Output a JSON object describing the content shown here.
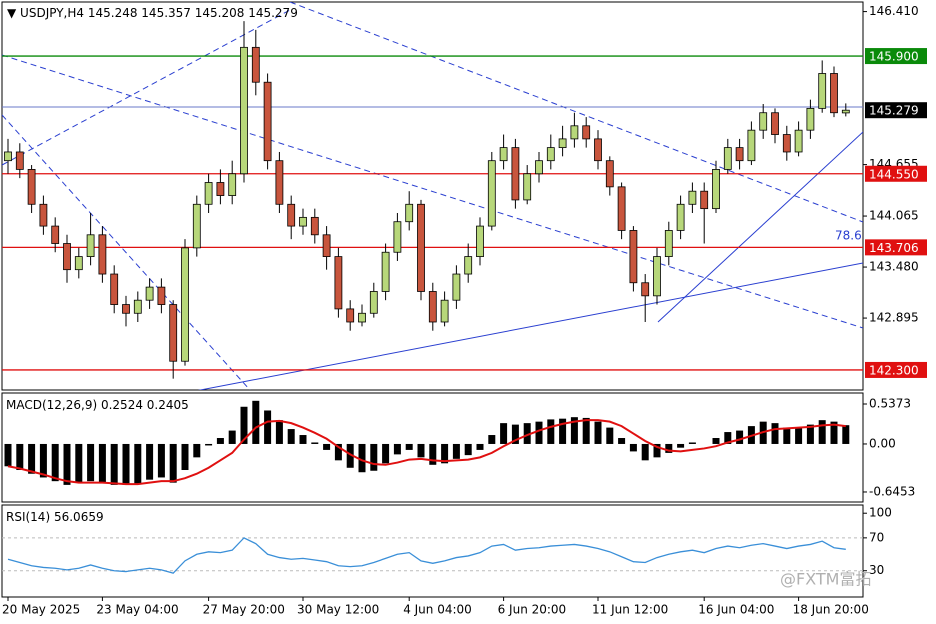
{
  "chart_data": [
    {
      "type": "candlestick",
      "title": "USDJPY,H4",
      "categories": [
        "20 May 2025",
        null,
        null,
        null,
        null,
        null,
        null,
        null,
        "23 May 04:00",
        null,
        null,
        null,
        null,
        null,
        null,
        null,
        null,
        "27 May 20:00",
        null,
        null,
        null,
        null,
        null,
        null,
        null,
        "30 May 12:00",
        null,
        null,
        null,
        null,
        null,
        null,
        null,
        null,
        "4 Jun 04:00",
        null,
        null,
        null,
        null,
        null,
        null,
        null,
        "6 Jun 20:00",
        null,
        null,
        null,
        null,
        null,
        null,
        null,
        "11 Jun 12:00",
        null,
        null,
        null,
        null,
        null,
        null,
        null,
        null,
        "16 Jun 04:00",
        null,
        null,
        null,
        null,
        null,
        null,
        null,
        "18 Jun 20:00",
        null,
        null,
        null,
        null
      ],
      "open": [
        144.7,
        144.8,
        144.6,
        144.2,
        143.95,
        143.75,
        143.45,
        143.6,
        143.85,
        143.4,
        143.05,
        142.95,
        143.1,
        143.25,
        143.05,
        142.4,
        143.7,
        144.2,
        144.45,
        144.3,
        144.55,
        146.0,
        145.6,
        144.7,
        144.2,
        143.95,
        144.05,
        143.85,
        143.6,
        143.0,
        142.85,
        142.95,
        143.2,
        143.65,
        144.0,
        144.2,
        143.2,
        142.85,
        143.1,
        143.4,
        143.6,
        143.95,
        144.7,
        144.85,
        144.25,
        144.55,
        144.7,
        144.85,
        144.95,
        145.1,
        144.95,
        144.7,
        144.4,
        143.9,
        143.3,
        143.15,
        143.6,
        143.9,
        144.2,
        144.35,
        144.15,
        144.6,
        144.85,
        144.7,
        145.05,
        145.25,
        145.0,
        144.8,
        145.05,
        145.3,
        145.7,
        145.248
      ],
      "high": [
        144.95,
        144.9,
        144.65,
        144.3,
        144.05,
        143.85,
        143.7,
        144.1,
        143.95,
        143.5,
        143.15,
        143.2,
        143.35,
        143.35,
        143.1,
        143.8,
        144.3,
        144.55,
        144.6,
        144.7,
        146.3,
        146.2,
        145.7,
        144.8,
        144.3,
        144.15,
        144.15,
        143.95,
        143.7,
        143.1,
        143.05,
        143.3,
        143.75,
        144.1,
        144.35,
        144.25,
        143.3,
        143.2,
        143.5,
        143.75,
        144.05,
        144.8,
        145.0,
        144.95,
        144.65,
        144.8,
        145.0,
        145.1,
        145.25,
        145.2,
        145.05,
        144.75,
        144.45,
        143.95,
        143.4,
        143.7,
        144.0,
        144.3,
        144.45,
        144.45,
        144.7,
        144.95,
        144.95,
        145.15,
        145.35,
        145.3,
        145.1,
        145.15,
        145.4,
        145.85,
        145.78,
        145.357
      ],
      "low": [
        144.55,
        144.5,
        144.1,
        143.85,
        143.65,
        143.3,
        143.35,
        143.5,
        143.3,
        142.95,
        142.8,
        142.85,
        143.0,
        142.95,
        142.2,
        142.35,
        143.6,
        144.1,
        144.2,
        144.2,
        144.45,
        145.45,
        144.6,
        144.1,
        143.8,
        143.85,
        143.75,
        143.45,
        142.9,
        142.75,
        142.8,
        142.9,
        143.1,
        143.55,
        143.9,
        143.1,
        142.75,
        142.8,
        143.0,
        143.3,
        143.5,
        143.9,
        144.6,
        144.15,
        144.2,
        144.45,
        144.6,
        144.75,
        144.85,
        144.85,
        144.6,
        144.3,
        143.8,
        143.2,
        142.85,
        143.05,
        143.5,
        143.8,
        144.1,
        143.75,
        144.1,
        144.55,
        144.6,
        144.65,
        144.95,
        144.9,
        144.7,
        144.75,
        144.95,
        145.25,
        145.2,
        145.208
      ],
      "close": [
        144.8,
        144.6,
        144.2,
        143.95,
        143.75,
        143.45,
        143.6,
        143.85,
        143.4,
        143.05,
        142.95,
        143.1,
        143.25,
        143.05,
        142.4,
        143.7,
        144.2,
        144.45,
        144.3,
        144.55,
        146.0,
        145.6,
        144.7,
        144.2,
        143.95,
        144.05,
        143.85,
        143.6,
        143.0,
        142.85,
        142.95,
        143.2,
        143.65,
        144.0,
        144.2,
        143.2,
        142.85,
        143.1,
        143.4,
        143.6,
        143.95,
        144.7,
        144.85,
        144.25,
        144.55,
        144.7,
        144.85,
        144.95,
        145.1,
        144.95,
        144.7,
        144.4,
        143.9,
        143.3,
        143.15,
        143.6,
        143.9,
        144.2,
        144.35,
        144.15,
        144.6,
        144.85,
        144.7,
        145.05,
        145.25,
        145.0,
        144.8,
        145.05,
        145.3,
        145.7,
        145.25,
        145.279
      ],
      "up_color": "#b7d77a",
      "down_color": "#c8553d",
      "ylim": [
        142.07,
        146.52
      ],
      "yticks": [
        {
          "value": 146.41,
          "label": "146.410"
        },
        144.655,
        144.065,
        {
          "value": 143.48,
          "label": "143.480"
        },
        142.895
      ],
      "levels": [
        {
          "value": 145.9,
          "label": "145.900",
          "color": "#0a8a0a"
        },
        {
          "value": 144.55,
          "label": "144.550",
          "color": "#e01010"
        },
        {
          "value": 143.706,
          "label": "143.706",
          "color": "#e01010"
        },
        {
          "value": 142.3,
          "label": "142.300",
          "color": "#e01010"
        }
      ],
      "annotation": "78.6"
    },
    {
      "type": "macd",
      "title": "MACD(12,26,9)",
      "histogram": [
        -0.3,
        -0.35,
        -0.4,
        -0.45,
        -0.5,
        -0.55,
        -0.52,
        -0.5,
        -0.52,
        -0.55,
        -0.55,
        -0.53,
        -0.48,
        -0.45,
        -0.52,
        -0.35,
        -0.18,
        -0.02,
        0.08,
        0.18,
        0.5,
        0.58,
        0.45,
        0.32,
        0.2,
        0.12,
        0.02,
        -0.08,
        -0.22,
        -0.32,
        -0.38,
        -0.36,
        -0.26,
        -0.14,
        -0.08,
        -0.18,
        -0.28,
        -0.26,
        -0.2,
        -0.15,
        -0.08,
        0.12,
        0.28,
        0.26,
        0.28,
        0.3,
        0.33,
        0.34,
        0.36,
        0.35,
        0.3,
        0.22,
        0.08,
        -0.1,
        -0.22,
        -0.18,
        -0.12,
        -0.05,
        0.02,
        0.0,
        0.08,
        0.16,
        0.18,
        0.24,
        0.3,
        0.28,
        0.22,
        0.22,
        0.26,
        0.32,
        0.3,
        0.2524
      ],
      "signal": [
        -0.3,
        -0.33,
        -0.37,
        -0.41,
        -0.46,
        -0.5,
        -0.52,
        -0.52,
        -0.52,
        -0.53,
        -0.54,
        -0.54,
        -0.52,
        -0.5,
        -0.5,
        -0.46,
        -0.4,
        -0.32,
        -0.22,
        -0.12,
        0.06,
        0.22,
        0.3,
        0.31,
        0.28,
        0.22,
        0.15,
        0.07,
        -0.04,
        -0.14,
        -0.22,
        -0.27,
        -0.28,
        -0.25,
        -0.21,
        -0.2,
        -0.22,
        -0.23,
        -0.22,
        -0.21,
        -0.18,
        -0.12,
        -0.03,
        0.05,
        0.12,
        0.18,
        0.23,
        0.27,
        0.3,
        0.32,
        0.32,
        0.3,
        0.24,
        0.14,
        0.04,
        -0.04,
        -0.09,
        -0.1,
        -0.08,
        -0.06,
        -0.03,
        0.02,
        0.06,
        0.11,
        0.16,
        0.2,
        0.21,
        0.22,
        0.23,
        0.25,
        0.26,
        0.2405
      ],
      "hist_color": "#000000",
      "signal_color": "#e01010",
      "ylim": [
        -0.78,
        0.685
      ],
      "yticks": [
        0.5373,
        {
          "value": 0,
          "label": "0.00"
        },
        -0.6453
      ]
    },
    {
      "type": "line",
      "title": "RSI(14)",
      "values": [
        44,
        40,
        36,
        34,
        33,
        31,
        33,
        37,
        33,
        30,
        29,
        31,
        33,
        31,
        27,
        42,
        50,
        53,
        52,
        55,
        70,
        63,
        50,
        46,
        44,
        45,
        43,
        41,
        36,
        35,
        36,
        40,
        45,
        50,
        52,
        42,
        39,
        42,
        46,
        48,
        52,
        60,
        62,
        55,
        57,
        58,
        60,
        61,
        62,
        60,
        57,
        53,
        47,
        41,
        40,
        46,
        50,
        53,
        55,
        52,
        57,
        60,
        58,
        61,
        63,
        60,
        57,
        60,
        62,
        66,
        58,
        56.0659
      ],
      "color": "#3a8fd8",
      "ylim": [
        -2,
        110
      ],
      "yticks": [
        100,
        70,
        30
      ],
      "levels": [
        70,
        30
      ]
    }
  ],
  "watermark": "@FXTM富拓"
}
